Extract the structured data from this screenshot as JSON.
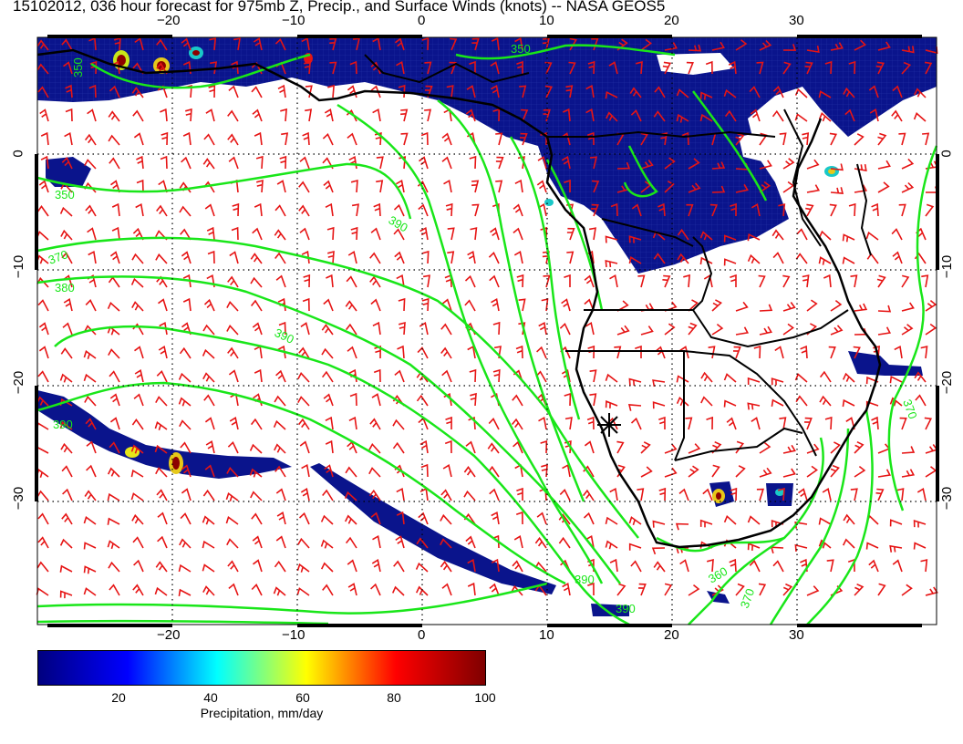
{
  "title": "15102012, 036 hour forecast for 975mb Z, Precip., and Surface Winds (knots) -- NASA GEOS5",
  "map": {
    "lon_labels": [
      "−20",
      "−10",
      "0",
      "10",
      "20",
      "30"
    ],
    "lat_labels": [
      "0",
      "−10",
      "−20",
      "−30"
    ],
    "lon_range": [
      -30,
      41
    ],
    "lat_range": [
      -40,
      9
    ],
    "contour_labels": [
      "350",
      "360",
      "370",
      "380",
      "390"
    ],
    "colors": {
      "precip_low": "#0a148c",
      "contour": "#19e619",
      "wind_barb": "#e61414",
      "coastline": "#000000",
      "grid": "#000000"
    },
    "marker": "asterisk"
  },
  "colorbar": {
    "ticks": [
      "20",
      "40",
      "60",
      "80",
      "100"
    ],
    "label": "Precipitation, mm/day",
    "range": [
      0,
      100
    ],
    "colors": [
      "#00007f",
      "#0000ff",
      "#00ffff",
      "#ffff00",
      "#ff0000",
      "#7f0000"
    ]
  }
}
